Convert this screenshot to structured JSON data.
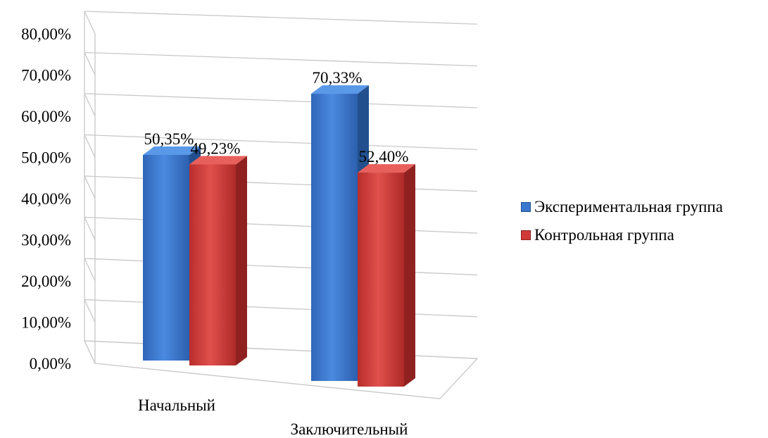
{
  "chart_data": {
    "type": "bar",
    "title": "",
    "xlabel": "",
    "ylabel": "",
    "ylim": [
      0,
      80
    ],
    "y_ticks": [
      "0,00%",
      "10,00%",
      "20,00%",
      "30,00%",
      "40,00%",
      "50,00%",
      "60,00%",
      "70,00%",
      "80,00%"
    ],
    "grid": true,
    "legend_position": "right",
    "categories": [
      "Начальный",
      "Заключительный"
    ],
    "series": [
      {
        "name": "Экспериментальная группа",
        "color": "#3a78d0",
        "values": [
          50.35,
          70.33
        ],
        "labels": [
          "50,35%",
          "70,33%"
        ]
      },
      {
        "name": "Контрольная группа",
        "color": "#d03a38",
        "values": [
          49.23,
          52.4
        ],
        "labels": [
          "49,23%",
          "52,40%"
        ]
      }
    ]
  }
}
